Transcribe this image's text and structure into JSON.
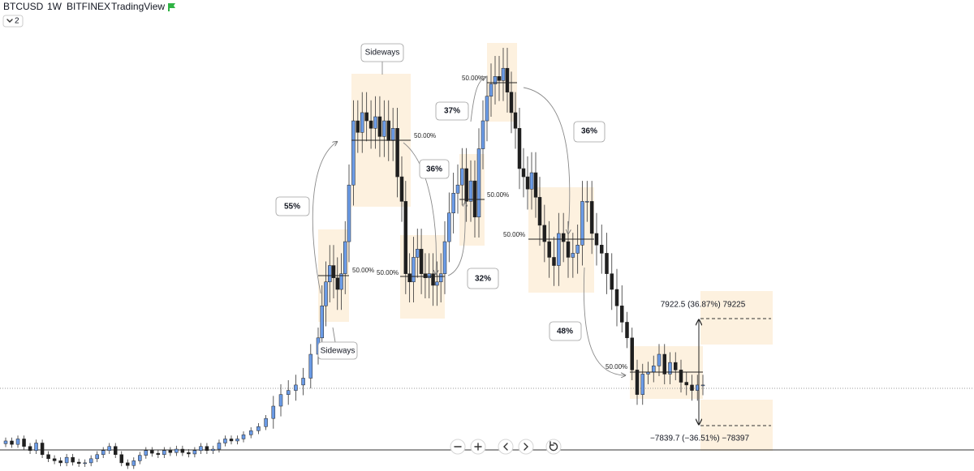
{
  "header": {
    "symbol": "BTCUSD",
    "interval": "1W",
    "exchange": "BITFINEX",
    "source": "TradingView",
    "indicator_count": "2"
  },
  "chart_data": {
    "type": "candlestick",
    "open": [
      10500,
      10900,
      10400,
      11200,
      10100,
      9500,
      10600,
      8900,
      8300,
      8000,
      7700,
      8500,
      7800,
      7600,
      7700,
      8300,
      8900,
      9500,
      10100,
      8900,
      7700,
      7300,
      8000,
      8800,
      9500,
      9100,
      8900,
      9500,
      9200,
      9700,
      9200,
      9000,
      9500,
      10100,
      9500,
      9700,
      10600,
      11200,
      10900,
      11200,
      11800,
      12400,
      13000,
      14200,
      16000,
      17700,
      18300,
      19100,
      20100,
      23600,
      26000,
      30700,
      34200,
      36600,
      34800,
      33100,
      35400,
      40100,
      48400,
      57800,
      56100,
      59000,
      57800,
      56700,
      58400,
      55500,
      57800,
      54900,
      56700,
      49600,
      46000,
      35400,
      34200,
      37800,
      39000,
      35400,
      34800,
      35400,
      33700,
      34200,
      35400,
      40100,
      44300,
      47200,
      48400,
      50800,
      46000,
      49000,
      43700,
      53700,
      57800,
      61400,
      63200,
      64300,
      63700,
      65500,
      62000,
      59000,
      56700,
      50800,
      49600,
      47800,
      50200,
      46600,
      42500,
      40100,
      37800,
      36600,
      41300,
      40100,
      37800,
      38400,
      39600,
      46000,
      46000,
      41300,
      39600,
      38400,
      35400,
      33100,
      30700,
      28300,
      26000,
      21300,
      17700,
      20700,
      21000,
      21900,
      23600,
      20700,
      22400,
      21300,
      19500,
      19100,
      18300,
      19100
    ],
    "high": [
      11400,
      11400,
      11700,
      11700,
      10600,
      11100,
      11100,
      9400,
      8800,
      8500,
      9000,
      9000,
      8300,
      8200,
      8800,
      9400,
      10000,
      10600,
      10600,
      9400,
      8200,
      8500,
      9300,
      10000,
      10000,
      9600,
      10000,
      10000,
      10200,
      10200,
      9700,
      10000,
      10600,
      10600,
      10200,
      11100,
      11700,
      11700,
      11700,
      12300,
      12900,
      13500,
      14700,
      17500,
      19200,
      19800,
      20600,
      21600,
      25100,
      27500,
      33700,
      37200,
      39600,
      39600,
      37800,
      38400,
      43100,
      51400,
      60800,
      60800,
      62000,
      62000,
      60800,
      61400,
      61400,
      60800,
      60800,
      59700,
      59700,
      52600,
      49000,
      38400,
      40800,
      42000,
      42000,
      38400,
      38400,
      38400,
      37200,
      38400,
      43100,
      47300,
      50200,
      51400,
      53800,
      53800,
      52000,
      52000,
      56700,
      60800,
      64400,
      66200,
      67300,
      67300,
      68500,
      68500,
      65000,
      62000,
      59700,
      53800,
      52600,
      53200,
      53200,
      49600,
      45500,
      43100,
      40800,
      44300,
      44300,
      43100,
      41400,
      42600,
      49000,
      49000,
      49000,
      44300,
      42600,
      41400,
      38400,
      36100,
      33700,
      29800,
      27500,
      22800,
      22200,
      22500,
      23400,
      25100,
      25100,
      23900,
      23900,
      22800,
      21000,
      20600,
      20600,
      20600
    ],
    "low": [
      10000,
      9900,
      9900,
      9600,
      9000,
      9000,
      8400,
      7800,
      7500,
      7200,
      7200,
      7300,
      7100,
      7100,
      7200,
      7800,
      8400,
      9000,
      8400,
      7200,
      6800,
      6800,
      7500,
      8300,
      8600,
      8400,
      8400,
      8700,
      8700,
      8700,
      8500,
      8500,
      9000,
      9000,
      9000,
      9200,
      10100,
      10400,
      10400,
      10700,
      11300,
      11900,
      12500,
      12700,
      14500,
      16200,
      16800,
      17600,
      18600,
      22100,
      23000,
      27700,
      31200,
      31800,
      30100,
      30100,
      32400,
      37100,
      45400,
      53100,
      53100,
      54800,
      53700,
      53700,
      52500,
      52500,
      51900,
      51900,
      46600,
      43000,
      32400,
      31200,
      31200,
      34800,
      32400,
      31800,
      31800,
      30700,
      30700,
      31200,
      32400,
      37100,
      41300,
      44200,
      45400,
      43000,
      43000,
      40700,
      40700,
      50700,
      54800,
      58400,
      60200,
      60700,
      60700,
      59000,
      56000,
      53700,
      47800,
      46600,
      44800,
      44800,
      43600,
      39500,
      37100,
      34800,
      33600,
      33600,
      37100,
      34800,
      34800,
      35400,
      36600,
      43000,
      38300,
      36600,
      35400,
      32400,
      30100,
      27700,
      26800,
      24500,
      19800,
      16200,
      16200,
      19200,
      19500,
      20400,
      19200,
      19200,
      19800,
      18000,
      17600,
      16800,
      16800,
      17600
    ],
    "close": [
      10900,
      10400,
      11200,
      10100,
      9500,
      10600,
      8900,
      8300,
      8000,
      7700,
      8500,
      7800,
      7600,
      7700,
      8300,
      8900,
      9500,
      10100,
      8900,
      7700,
      7300,
      8000,
      8800,
      9500,
      9100,
      8900,
      9500,
      9200,
      9700,
      9200,
      9000,
      9500,
      10100,
      9500,
      9700,
      10600,
      11200,
      10900,
      11200,
      11800,
      12400,
      13000,
      14200,
      16000,
      17700,
      18300,
      19100,
      20100,
      23600,
      26000,
      30700,
      34200,
      36600,
      34800,
      33100,
      35400,
      40100,
      48400,
      57800,
      56100,
      59000,
      57800,
      56700,
      58400,
      55500,
      57800,
      54900,
      56700,
      49600,
      46000,
      35400,
      34200,
      37800,
      39000,
      35400,
      34800,
      35400,
      33700,
      34200,
      35400,
      40100,
      44300,
      47200,
      48400,
      50800,
      46000,
      49000,
      43700,
      53700,
      57800,
      61400,
      63200,
      64300,
      63700,
      65500,
      62000,
      59000,
      56700,
      50800,
      49600,
      47800,
      50200,
      46600,
      42500,
      40100,
      37800,
      36600,
      41300,
      40100,
      37800,
      38400,
      39600,
      46000,
      46000,
      41300,
      39600,
      38400,
      35400,
      33100,
      30700,
      28300,
      26000,
      21300,
      17700,
      20700,
      21000,
      21900,
      23600,
      20700,
      22400,
      21300,
      19500,
      19100,
      18300,
      19100,
      19100
    ],
    "up_color": "#6b9be6",
    "down_color": "#1f1f1f",
    "ylim": [
      6500,
      75500
    ]
  },
  "annotations": {
    "sideways": [
      "Sideways",
      "Sideways"
    ],
    "moves": [
      "55%",
      "36%",
      "37%",
      "36%",
      "32%",
      "48%"
    ],
    "midlines": [
      "50.00%",
      "50.00%",
      "50.00%",
      "50.00%",
      "50.00%",
      "50.00%",
      "50.00%"
    ],
    "measure_up": "7922.5 (36.87%) 79225",
    "measure_down": "−7839.7 (−36.51%) −78397"
  }
}
